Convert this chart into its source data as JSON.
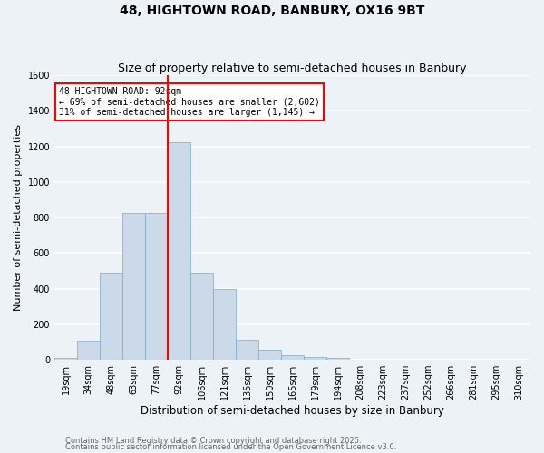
{
  "title": "48, HIGHTOWN ROAD, BANBURY, OX16 9BT",
  "subtitle": "Size of property relative to semi-detached houses in Banbury",
  "xlabel": "Distribution of semi-detached houses by size in Banbury",
  "ylabel": "Number of semi-detached properties",
  "bins": [
    "19sqm",
    "34sqm",
    "48sqm",
    "63sqm",
    "77sqm",
    "92sqm",
    "106sqm",
    "121sqm",
    "135sqm",
    "150sqm",
    "165sqm",
    "179sqm",
    "194sqm",
    "208sqm",
    "223sqm",
    "237sqm",
    "252sqm",
    "266sqm",
    "281sqm",
    "295sqm",
    "310sqm"
  ],
  "values": [
    10,
    110,
    490,
    825,
    825,
    1225,
    490,
    400,
    115,
    55,
    25,
    15,
    10,
    0,
    0,
    0,
    0,
    0,
    0,
    0,
    0
  ],
  "bar_color": "#ccd9e8",
  "bar_edge_color": "#7aaac8",
  "line_color": "red",
  "annotation_title": "48 HIGHTOWN ROAD: 92sqm",
  "annotation_line1": "← 69% of semi-detached houses are smaller (2,602)",
  "annotation_line2": "31% of semi-detached houses are larger (1,145) →",
  "annotation_box_color": "white",
  "annotation_box_edge": "red",
  "ylim": [
    0,
    1600
  ],
  "yticks": [
    0,
    200,
    400,
    600,
    800,
    1000,
    1200,
    1400,
    1600
  ],
  "footer1": "Contains HM Land Registry data © Crown copyright and database right 2025.",
  "footer2": "Contains public sector information licensed under the Open Government Licence v3.0.",
  "bg_color": "#edf2f7",
  "grid_color": "white",
  "title_fontsize": 10,
  "subtitle_fontsize": 9,
  "tick_fontsize": 7,
  "ylabel_fontsize": 8,
  "xlabel_fontsize": 8.5,
  "footer_fontsize": 6,
  "line_idx": 5
}
